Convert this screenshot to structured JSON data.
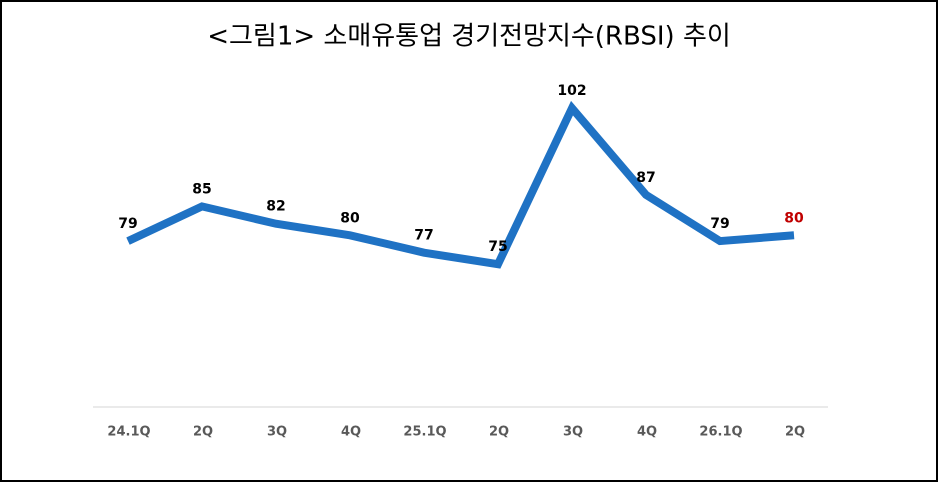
{
  "chart_data": {
    "type": "line",
    "title": "<그림1> 소매유통업 경기전망지수(RBSI) 추이",
    "categories": [
      "24.1Q",
      "2Q",
      "3Q",
      "4Q",
      "25.1Q",
      "2Q",
      "3Q",
      "4Q",
      "26.1Q",
      "2Q"
    ],
    "values": [
      79,
      85,
      82,
      80,
      77,
      75,
      102,
      87,
      79,
      80
    ],
    "color": "#1f72c4",
    "label_colors": [
      "#000000",
      "#000000",
      "#000000",
      "#000000",
      "#000000",
      "#000000",
      "#000000",
      "#000000",
      "#000000",
      "#c00000"
    ]
  }
}
